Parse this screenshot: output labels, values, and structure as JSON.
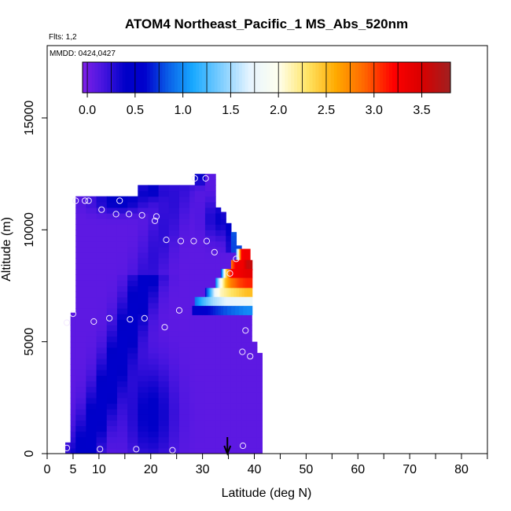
{
  "chart_data": {
    "type": "heatmap",
    "title": "ATOM4 Northeast_Pacific_1 MS_Abs_520nm",
    "annotations": [
      "Flts: 1,2",
      "MMDD: 0424,0427"
    ],
    "xlabel": "Latitude (deg N)",
    "ylabel": "Altitude (m)",
    "xlim": [
      0,
      85
    ],
    "ylim": [
      0,
      17500
    ],
    "x_tick_labels": [
      "0",
      "5",
      "10",
      "20",
      "30",
      "40",
      "50",
      "60",
      "70",
      "80"
    ],
    "x_tick_values": [
      0,
      5,
      10,
      20,
      30,
      40,
      50,
      60,
      70,
      80
    ],
    "y_tick_labels": [
      "0",
      "5000",
      "10000",
      "15000"
    ],
    "y_tick_values": [
      0,
      5000,
      10000,
      15000
    ],
    "colorbar": {
      "range": [
        -0.05,
        3.8
      ],
      "tick_labels": [
        "0.0",
        "0.5",
        "1.0",
        "1.5",
        "2.0",
        "2.5",
        "3.0",
        "3.5"
      ],
      "tick_values": [
        0.0,
        0.5,
        1.0,
        1.5,
        2.0,
        2.5,
        3.0,
        3.5
      ],
      "stops": [
        {
          "v": -0.05,
          "color": "#7f1fe6"
        },
        {
          "v": 0.15,
          "color": "#4b16e0"
        },
        {
          "v": 0.4,
          "color": "#0000c8"
        },
        {
          "v": 0.6,
          "color": "#0000cd"
        },
        {
          "v": 0.85,
          "color": "#0a60e8"
        },
        {
          "v": 1.1,
          "color": "#17a8ff"
        },
        {
          "v": 1.45,
          "color": "#8fd4ff"
        },
        {
          "v": 1.7,
          "color": "#e6f4ff"
        },
        {
          "v": 2.0,
          "color": "#ffffee"
        },
        {
          "v": 2.3,
          "color": "#ffe566"
        },
        {
          "v": 2.6,
          "color": "#ffaa00"
        },
        {
          "v": 2.9,
          "color": "#ff6600"
        },
        {
          "v": 3.2,
          "color": "#ff0000"
        },
        {
          "v": 3.5,
          "color": "#d80000"
        },
        {
          "v": 3.8,
          "color": "#a02020"
        }
      ]
    },
    "curtain_columns": [
      {
        "lat": 3.5,
        "top": 500
      },
      {
        "lat": 4.5,
        "top": 6300
      },
      {
        "lat": 5.5,
        "top": 11500
      },
      {
        "lat": 7.5,
        "top": 11500
      },
      {
        "lat": 9.5,
        "top": 11500
      },
      {
        "lat": 11.5,
        "top": 11500
      },
      {
        "lat": 13.5,
        "top": 11500
      },
      {
        "lat": 15.5,
        "top": 11500
      },
      {
        "lat": 17.5,
        "top": 12000
      },
      {
        "lat": 19.5,
        "top": 12000
      },
      {
        "lat": 21.5,
        "top": 12000
      },
      {
        "lat": 23.5,
        "top": 12000
      },
      {
        "lat": 25.5,
        "top": 12000
      },
      {
        "lat": 27.5,
        "top": 12000
      },
      {
        "lat": 28.5,
        "top": 12500
      },
      {
        "lat": 30.5,
        "top": 12500
      },
      {
        "lat": 32.5,
        "top": 11000
      },
      {
        "lat": 33.5,
        "top": 10800
      },
      {
        "lat": 34.5,
        "top": 10300
      },
      {
        "lat": 35.5,
        "top": 9900
      },
      {
        "lat": 36.5,
        "top": 9300
      },
      {
        "lat": 37.5,
        "top": 8800
      },
      {
        "lat": 38.5,
        "top": 8100
      },
      {
        "lat": 39.5,
        "top": 5000
      },
      {
        "lat": 40.5,
        "top": 4500
      }
    ],
    "plume_rows": [
      {
        "y": 8650,
        "h": 500,
        "lat0": 36.5,
        "values": [
          {
            "lat": 36.5,
            "v": 1.2
          },
          {
            "lat": 37.5,
            "v": 3.2
          },
          {
            "lat": 38.2,
            "v": 3.3
          }
        ]
      },
      {
        "y": 8200,
        "h": 450,
        "lat0": 35.5,
        "values": [
          {
            "lat": 35.5,
            "v": 2.8
          },
          {
            "lat": 36.5,
            "v": 3.3
          },
          {
            "lat": 37.8,
            "v": 3.3
          },
          {
            "lat": 38.6,
            "v": 3.6
          }
        ]
      },
      {
        "y": 7850,
        "h": 400,
        "lat0": 33.5,
        "values": [
          {
            "lat": 33.5,
            "v": 0.6
          },
          {
            "lat": 34.5,
            "v": 2.3
          },
          {
            "lat": 35.5,
            "v": 3.2
          },
          {
            "lat": 37.0,
            "v": 3.3
          },
          {
            "lat": 38.6,
            "v": 3.4
          }
        ]
      },
      {
        "y": 7400,
        "h": 450,
        "lat0": 32.5,
        "values": [
          {
            "lat": 32.5,
            "v": 0.9
          },
          {
            "lat": 33.5,
            "v": 1.9
          },
          {
            "lat": 34.5,
            "v": 2.5
          },
          {
            "lat": 35.5,
            "v": 2.8
          },
          {
            "lat": 37.0,
            "v": 3.0
          },
          {
            "lat": 38.6,
            "v": 3.1
          }
        ]
      },
      {
        "y": 7000,
        "h": 400,
        "lat0": 30.5,
        "values": [
          {
            "lat": 30.5,
            "v": 0.6
          },
          {
            "lat": 31.5,
            "v": 1.2
          },
          {
            "lat": 32.5,
            "v": 1.8
          },
          {
            "lat": 33.5,
            "v": 2.1
          },
          {
            "lat": 35.5,
            "v": 2.3
          },
          {
            "lat": 38.6,
            "v": 2.5
          }
        ]
      },
      {
        "y": 6600,
        "h": 400,
        "lat0": 28.5,
        "values": [
          {
            "lat": 28.5,
            "v": 0.9
          },
          {
            "lat": 30.0,
            "v": 1.2
          },
          {
            "lat": 32.0,
            "v": 1.5
          },
          {
            "lat": 34.5,
            "v": 1.7
          },
          {
            "lat": 38.6,
            "v": 1.8
          }
        ]
      },
      {
        "y": 6200,
        "h": 400,
        "lat0": 28.0,
        "values": [
          {
            "lat": 28.0,
            "v": 0.5
          },
          {
            "lat": 31.0,
            "v": 0.6
          },
          {
            "lat": 34.0,
            "v": 0.8
          },
          {
            "lat": 38.6,
            "v": 1.0
          }
        ]
      }
    ],
    "flight_points": [
      {
        "lat": 3.8,
        "alt": 5850
      },
      {
        "lat": 5.0,
        "alt": 6250
      },
      {
        "lat": 5.5,
        "alt": 11300
      },
      {
        "lat": 7.3,
        "alt": 11300
      },
      {
        "lat": 8.0,
        "alt": 11300
      },
      {
        "lat": 9.0,
        "alt": 5900
      },
      {
        "lat": 10.5,
        "alt": 10900
      },
      {
        "lat": 12.0,
        "alt": 6050
      },
      {
        "lat": 13.3,
        "alt": 10700
      },
      {
        "lat": 14.0,
        "alt": 11300
      },
      {
        "lat": 15.8,
        "alt": 10700
      },
      {
        "lat": 16.0,
        "alt": 6000
      },
      {
        "lat": 18.3,
        "alt": 10650
      },
      {
        "lat": 18.8,
        "alt": 6050
      },
      {
        "lat": 20.8,
        "alt": 10400
      },
      {
        "lat": 21.1,
        "alt": 10600
      },
      {
        "lat": 22.7,
        "alt": 5650
      },
      {
        "lat": 23.0,
        "alt": 9550
      },
      {
        "lat": 25.5,
        "alt": 6400
      },
      {
        "lat": 25.8,
        "alt": 9500
      },
      {
        "lat": 28.3,
        "alt": 9500
      },
      {
        "lat": 28.5,
        "alt": 12300
      },
      {
        "lat": 30.6,
        "alt": 12300
      },
      {
        "lat": 30.8,
        "alt": 9500
      },
      {
        "lat": 32.3,
        "alt": 9000
      },
      {
        "lat": 35.3,
        "alt": 8050
      },
      {
        "lat": 36.5,
        "alt": 8700
      },
      {
        "lat": 37.7,
        "alt": 4550
      },
      {
        "lat": 38.3,
        "alt": 5500
      },
      {
        "lat": 39.2,
        "alt": 4350
      },
      {
        "lat": 37.8,
        "alt": 350
      },
      {
        "lat": 17.2,
        "alt": 200
      },
      {
        "lat": 24.2,
        "alt": 150
      },
      {
        "lat": 10.2,
        "alt": 200
      },
      {
        "lat": 3.8,
        "alt": 250
      }
    ],
    "marker_lat": 34.8,
    "grid": false,
    "legend": "top (colorbar inside plot)"
  }
}
